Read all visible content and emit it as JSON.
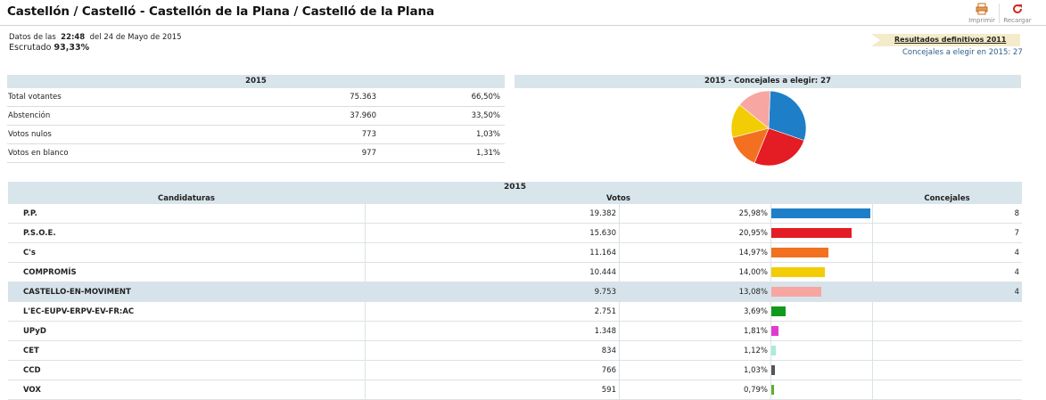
{
  "header": {
    "title": "Castellón / Castelló - Castellón de la Plana / Castelló de la Plana",
    "print_label": "Imprimir",
    "reload_label": "Recargar"
  },
  "status": {
    "data_prefix": "Datos de las",
    "time": "22:48",
    "date_suffix": "del 24 de Mayo de 2015",
    "escrutado_label": "Escrutado",
    "escrutado_value": "93,33%"
  },
  "results_link": "Resultados definitivos 2011",
  "concejales_2015": "Concejales a elegir en 2015: 27",
  "summary": {
    "header": "2015",
    "rows": [
      {
        "label": "Total votantes",
        "value": "75.363",
        "pct": "66,50%"
      },
      {
        "label": "Abstención",
        "value": "37.960",
        "pct": "33,50%"
      },
      {
        "label": "Votos nulos",
        "value": "773",
        "pct": "1,03%"
      },
      {
        "label": "Votos en blanco",
        "value": "977",
        "pct": "1,31%"
      }
    ]
  },
  "pie_panel": {
    "header": "2015 - Concejales a elegir: 27",
    "slices": [
      {
        "party": "P.P.",
        "seats": 8,
        "color": "#1e7fc8"
      },
      {
        "party": "P.S.O.E.",
        "seats": 7,
        "color": "#e41c23"
      },
      {
        "party": "C's",
        "seats": 4,
        "color": "#f37021"
      },
      {
        "party": "COMPROMÍS",
        "seats": 4,
        "color": "#f2cd06"
      },
      {
        "party": "CASTELLO-EN-MOVIMENT",
        "seats": 4,
        "color": "#f7a6a2"
      }
    ]
  },
  "main": {
    "header": "2015",
    "col_candidaturas": "Candidaturas",
    "col_votos": "Votos",
    "col_concejales": "Concejales",
    "rows": [
      {
        "name": "P.P.",
        "votes": "19.382",
        "pct": "25,98%",
        "share": 25.98,
        "color": "#1e7fc8",
        "seats": "8"
      },
      {
        "name": "P.S.O.E.",
        "votes": "15.630",
        "pct": "20,95%",
        "share": 20.95,
        "color": "#e41c23",
        "seats": "7"
      },
      {
        "name": "C's",
        "votes": "11.164",
        "pct": "14,97%",
        "share": 14.97,
        "color": "#f37021",
        "seats": "4"
      },
      {
        "name": "COMPROMÍS",
        "votes": "10.444",
        "pct": "14,00%",
        "share": 14.0,
        "color": "#f2cd06",
        "seats": "4"
      },
      {
        "name": "CASTELLO-EN-MOVIMENT",
        "votes": "9.753",
        "pct": "13,08%",
        "share": 13.08,
        "color": "#f7a6a2",
        "seats": "4"
      },
      {
        "name": "L'EC-EUPV-ERPV-EV-FR:AC",
        "votes": "2.751",
        "pct": "3,69%",
        "share": 3.69,
        "color": "#0f9a1c",
        "seats": ""
      },
      {
        "name": "UPyD",
        "votes": "1.348",
        "pct": "1,81%",
        "share": 1.81,
        "color": "#e03bd0",
        "seats": ""
      },
      {
        "name": "CET",
        "votes": "834",
        "pct": "1,12%",
        "share": 1.12,
        "color": "#a9ecd8",
        "seats": ""
      },
      {
        "name": "CCD",
        "votes": "766",
        "pct": "1,03%",
        "share": 1.03,
        "color": "#555555",
        "seats": ""
      },
      {
        "name": "VOX",
        "votes": "591",
        "pct": "0,79%",
        "share": 0.79,
        "color": "#5fae2e",
        "seats": ""
      }
    ]
  }
}
